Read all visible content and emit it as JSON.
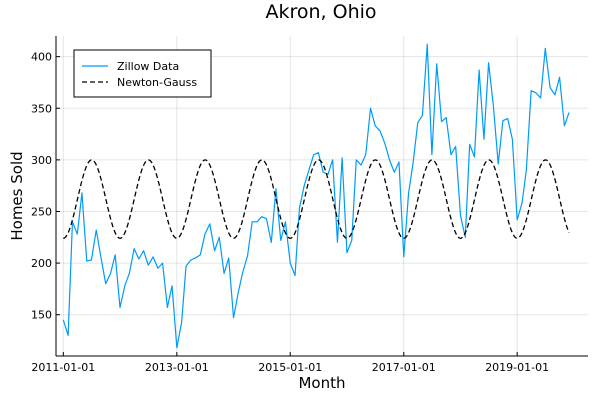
{
  "chart_data": {
    "type": "line",
    "title": "Akron, Ohio",
    "xlabel": "Month",
    "ylabel": "Homes Sold",
    "x_type": "date",
    "xlim": [
      "2010-11-15",
      "2020-04-01"
    ],
    "ylim": [
      110,
      420
    ],
    "x_ticks": [
      "2011-01-01",
      "2013-01-01",
      "2015-01-01",
      "2017-01-01",
      "2019-01-01"
    ],
    "x_tick_labels": [
      "2011-01-01",
      "2013-01-01",
      "2015-01-01",
      "2017-01-01",
      "2019-01-01"
    ],
    "y_ticks": [
      150,
      200,
      250,
      300,
      350,
      400
    ],
    "grid": true,
    "legend": {
      "position": "top-left"
    },
    "series": [
      {
        "name": "Zillow Data",
        "color": "#009AFA",
        "dash": "solid",
        "x": [
          "2011-01-01",
          "2011-02-01",
          "2011-03-01",
          "2011-04-01",
          "2011-05-01",
          "2011-06-01",
          "2011-07-01",
          "2011-08-01",
          "2011-09-01",
          "2011-10-01",
          "2011-11-01",
          "2011-12-01",
          "2012-01-01",
          "2012-02-01",
          "2012-03-01",
          "2012-04-01",
          "2012-05-01",
          "2012-06-01",
          "2012-07-01",
          "2012-08-01",
          "2012-09-01",
          "2012-10-01",
          "2012-11-01",
          "2012-12-01",
          "2013-01-01",
          "2013-02-01",
          "2013-03-01",
          "2013-04-01",
          "2013-05-01",
          "2013-06-01",
          "2013-07-01",
          "2013-08-01",
          "2013-09-01",
          "2013-10-01",
          "2013-11-01",
          "2013-12-01",
          "2014-01-01",
          "2014-02-01",
          "2014-03-01",
          "2014-04-01",
          "2014-05-01",
          "2014-06-01",
          "2014-07-01",
          "2014-08-01",
          "2014-09-01",
          "2014-10-01",
          "2014-11-01",
          "2014-12-01",
          "2015-01-01",
          "2015-02-01",
          "2015-03-01",
          "2015-04-01",
          "2015-05-01",
          "2015-06-01",
          "2015-07-01",
          "2015-08-01",
          "2015-09-01",
          "2015-10-01",
          "2015-11-01",
          "2015-12-01",
          "2016-01-01",
          "2016-02-01",
          "2016-03-01",
          "2016-04-01",
          "2016-05-01",
          "2016-06-01",
          "2016-07-01",
          "2016-08-01",
          "2016-09-01",
          "2016-10-01",
          "2016-11-01",
          "2016-12-01",
          "2017-01-01",
          "2017-02-01",
          "2017-03-01",
          "2017-04-01",
          "2017-05-01",
          "2017-06-01",
          "2017-07-01",
          "2017-08-01",
          "2017-09-01",
          "2017-10-01",
          "2017-11-01",
          "2017-12-01",
          "2018-01-01",
          "2018-02-01",
          "2018-03-01",
          "2018-04-01",
          "2018-05-01",
          "2018-06-01",
          "2018-07-01",
          "2018-08-01",
          "2018-09-01",
          "2018-10-01",
          "2018-11-01",
          "2018-12-01",
          "2019-01-01",
          "2019-02-01",
          "2019-03-01",
          "2019-04-01",
          "2019-05-01",
          "2019-06-01",
          "2019-07-01",
          "2019-08-01",
          "2019-09-01",
          "2019-10-01",
          "2019-11-01",
          "2019-12-01"
        ],
        "y": [
          145,
          130,
          240,
          228,
          268,
          202,
          203,
          232,
          205,
          180,
          190,
          208,
          157,
          178,
          190,
          214,
          204,
          212,
          198,
          206,
          195,
          200,
          157,
          178,
          118,
          143,
          197,
          203,
          205,
          208,
          228,
          238,
          212,
          225,
          190,
          205,
          147,
          172,
          191,
          207,
          240,
          240,
          245,
          243,
          220,
          272,
          222,
          240,
          200,
          188,
          253,
          275,
          290,
          305,
          307,
          288,
          286,
          300,
          220,
          302,
          210,
          222,
          300,
          295,
          305,
          350,
          333,
          328,
          316,
          300,
          288,
          298,
          206,
          268,
          296,
          336,
          343,
          412,
          305,
          393,
          337,
          341,
          305,
          313,
          246,
          225,
          315,
          303,
          387,
          320,
          394,
          352,
          296,
          338,
          340,
          320,
          242,
          258,
          290,
          367,
          365,
          360,
          408,
          370,
          363,
          380,
          333,
          346
        ]
      },
      {
        "name": "Newton-Gauss",
        "color": "#000000",
        "dash": "dashed",
        "model": {
          "mean": 262,
          "amplitude": 38,
          "period_months": 12,
          "peak_month": 7
        },
        "x_range": [
          "2011-01-01",
          "2019-12-01"
        ]
      }
    ]
  }
}
